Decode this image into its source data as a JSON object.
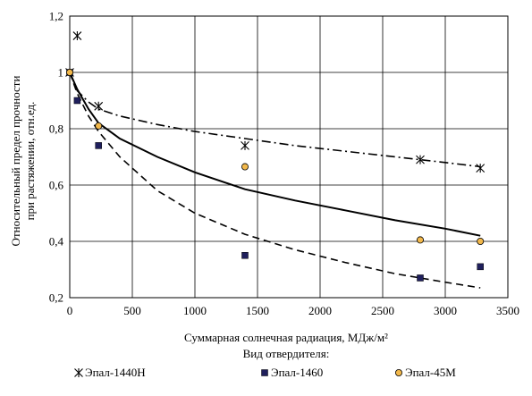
{
  "chart_data": {
    "type": "scatter",
    "title": "",
    "xlabel": "Суммарная солнечная радиация, МДж/м²",
    "ylabel_line1": "Относительный предел прочности",
    "ylabel_line2": "при растяжении, отн.ед.",
    "legend_title": "Вид отвердителя:",
    "legend_position": "bottom",
    "xlim": [
      0,
      3500
    ],
    "ylim": [
      0.2,
      1.2
    ],
    "grid": true,
    "x_ticks": [
      0,
      500,
      1000,
      1500,
      2000,
      2500,
      3000,
      3500
    ],
    "x_tick_labels": [
      "0",
      "500",
      "1000",
      "1500",
      "2000",
      "2500",
      "3000",
      "3500"
    ],
    "y_ticks": [
      0.2,
      0.4,
      0.6,
      0.8,
      1.0,
      1.2
    ],
    "y_tick_labels": [
      "0,2",
      "0,4",
      "0,6",
      "0,8",
      "1",
      "1,2"
    ],
    "series": [
      {
        "name": "Эпал-1440Н",
        "marker": "star",
        "color": "#000000",
        "x": [
          0,
          60,
          230,
          1400,
          2800,
          3280
        ],
        "y": [
          1.0,
          1.13,
          0.88,
          0.74,
          0.69,
          0.66
        ],
        "trend": {
          "style": "dashdot",
          "a": 1.0,
          "b": -0.0001302,
          "form": "y = exp(b*x^0.8)"
        }
      },
      {
        "name": "Эпал-1460",
        "marker": "square",
        "color": "#1f1f5c",
        "x": [
          0,
          60,
          230,
          1400,
          2800,
          3280
        ],
        "y": [
          1.0,
          0.9,
          0.74,
          0.35,
          0.27,
          0.31
        ],
        "trend": {
          "style": "dashed",
          "form": "power-decay"
        }
      },
      {
        "name": "Эпал-45М",
        "marker": "circle",
        "color": "#f2b84b",
        "x": [
          0,
          230,
          1400,
          2800,
          3280
        ],
        "y": [
          1.0,
          0.81,
          0.665,
          0.405,
          0.4
        ],
        "trend": {
          "style": "solid",
          "form": "power-decay"
        }
      }
    ],
    "trend_lines": [
      {
        "series": "Эпал-1440Н",
        "style": "dashdot",
        "x": [
          0,
          60,
          150,
          230,
          400,
          700,
          1000,
          1400,
          1800,
          2200,
          2600,
          3000,
          3280
        ],
        "y": [
          1.0,
          0.935,
          0.895,
          0.87,
          0.845,
          0.815,
          0.79,
          0.765,
          0.74,
          0.72,
          0.7,
          0.68,
          0.665
        ]
      },
      {
        "series": "Эпал-1460",
        "style": "dashed",
        "x": [
          0,
          60,
          150,
          230,
          400,
          700,
          1000,
          1400,
          1800,
          2200,
          2600,
          3000,
          3280
        ],
        "y": [
          1.0,
          0.925,
          0.845,
          0.79,
          0.7,
          0.58,
          0.5,
          0.425,
          0.37,
          0.325,
          0.285,
          0.255,
          0.235
        ]
      },
      {
        "series": "Эпал-45М",
        "style": "solid",
        "x": [
          0,
          60,
          150,
          230,
          400,
          700,
          1000,
          1400,
          1800,
          2200,
          2600,
          3000,
          3280
        ],
        "y": [
          1.0,
          0.94,
          0.87,
          0.82,
          0.765,
          0.7,
          0.645,
          0.585,
          0.545,
          0.51,
          0.475,
          0.445,
          0.42
        ]
      }
    ]
  }
}
